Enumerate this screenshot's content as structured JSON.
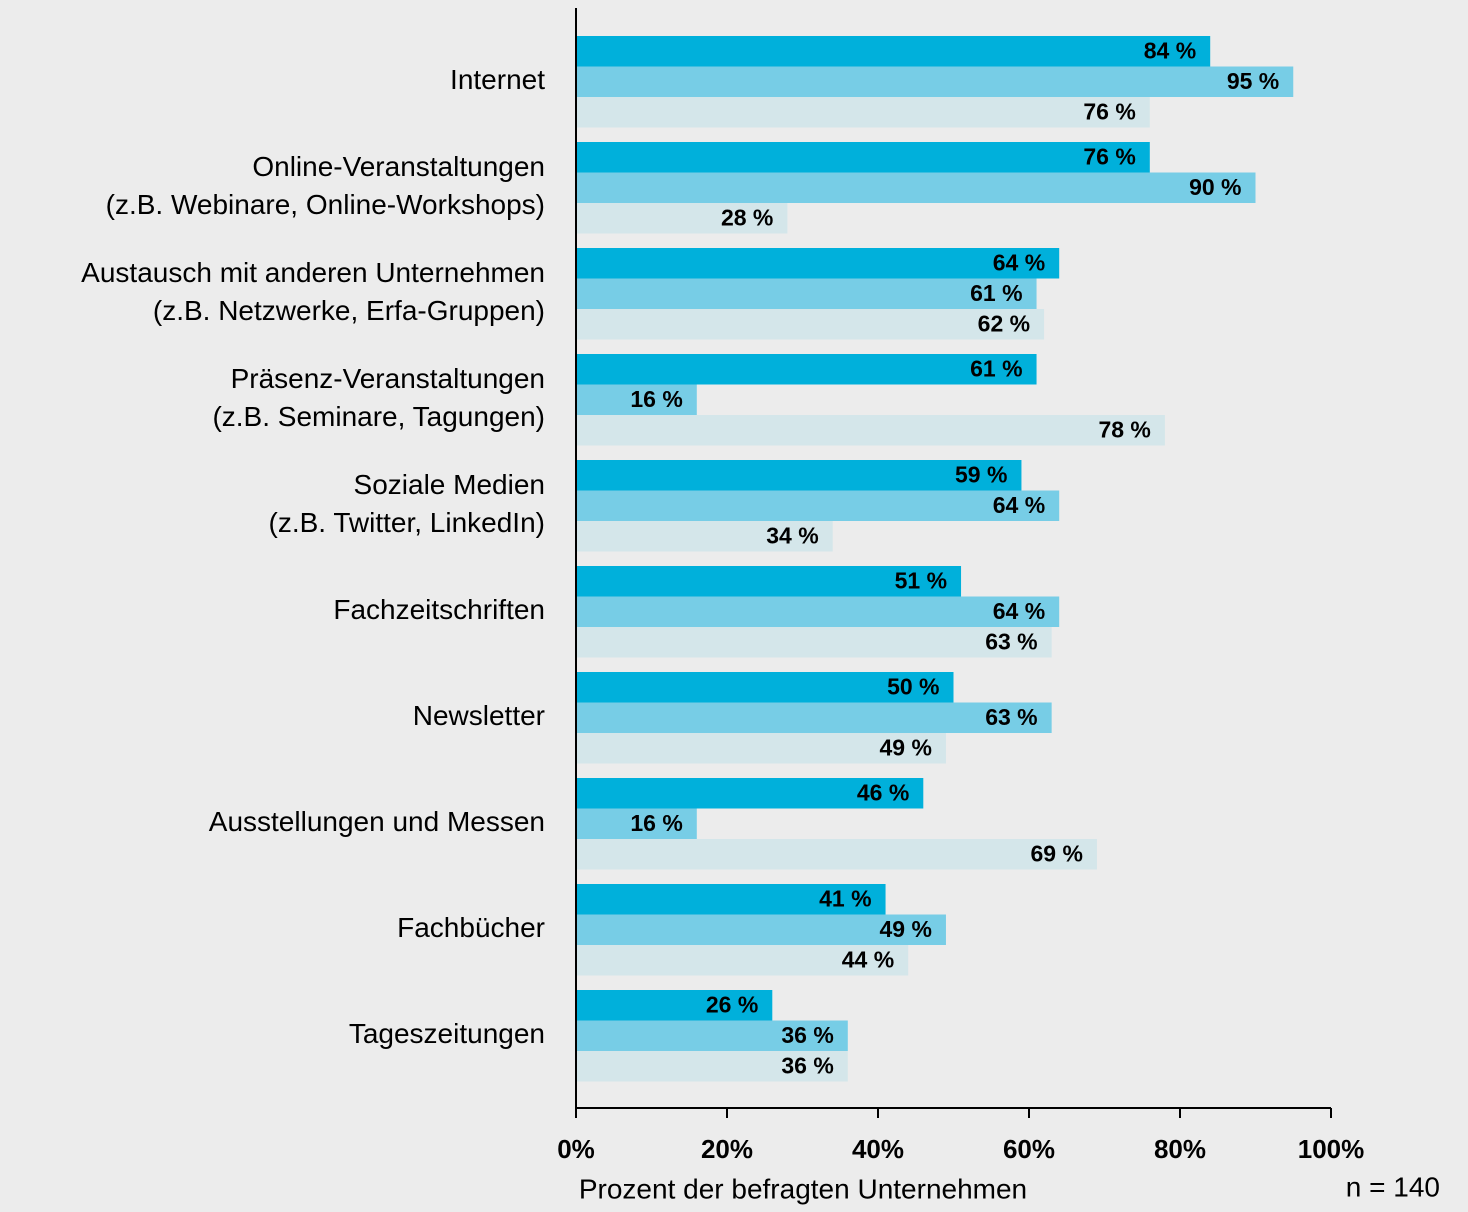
{
  "chart_data": {
    "type": "hbar",
    "categories": [
      [
        "Internet"
      ],
      [
        "Online-Veranstaltungen",
        "(z.B. Webinare, Online-Workshops)"
      ],
      [
        "Austausch mit anderen Unternehmen",
        "(z.B. Netzwerke, Erfa-Gruppen)"
      ],
      [
        "Präsenz-Veranstaltungen",
        "(z.B. Seminare, Tagungen)"
      ],
      [
        "Soziale Medien",
        "(z.B. Twitter, LinkedIn)"
      ],
      [
        "Fachzeitschriften"
      ],
      [
        "Newsletter"
      ],
      [
        "Ausstellungen und Messen"
      ],
      [
        "Fachbücher"
      ],
      [
        "Tageszeitungen"
      ]
    ],
    "series": [
      {
        "color": "#00b0db",
        "values": [
          84,
          76,
          64,
          61,
          59,
          51,
          50,
          46,
          41,
          26
        ],
        "value_labels": [
          "84 %",
          "76 %",
          "64 %",
          "61 %",
          "59 %",
          "51 %",
          "50 %",
          "46 %",
          "41 %",
          "26 %"
        ]
      },
      {
        "color": "#77cde6",
        "values": [
          95,
          90,
          61,
          16,
          64,
          64,
          63,
          16,
          49,
          36
        ],
        "value_labels": [
          "95 %",
          "90 %",
          "61 %",
          "16 %",
          "64 %",
          "64 %",
          "63 %",
          "16 %",
          "49 %",
          "36 %"
        ]
      },
      {
        "color": "#d4e6ea",
        "values": [
          76,
          28,
          62,
          78,
          34,
          63,
          49,
          69,
          44,
          36
        ],
        "value_labels": [
          "76 %",
          "28 %",
          "62 %",
          "78 %",
          "34 %",
          "63 %",
          "49 %",
          "69 %",
          "44 %",
          "36 %"
        ]
      }
    ],
    "xlim": [
      0,
      100
    ],
    "xticks": [
      {
        "value": 0,
        "label": "0%"
      },
      {
        "value": 20,
        "label": "20%"
      },
      {
        "value": 40,
        "label": "40%"
      },
      {
        "value": 60,
        "label": "60%"
      },
      {
        "value": 80,
        "label": "80%"
      },
      {
        "value": 100,
        "label": "100%"
      }
    ],
    "x_label": "Prozent der befragten Unternehmen",
    "note": "n = 140"
  }
}
